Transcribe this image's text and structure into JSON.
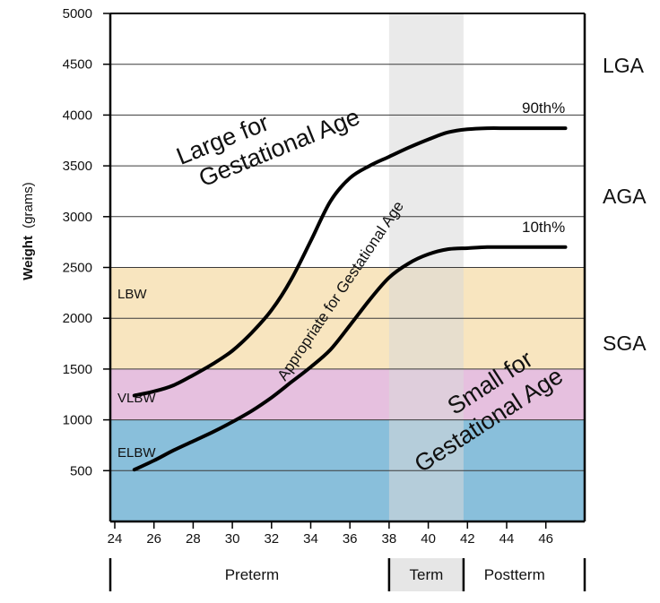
{
  "chart_data": {
    "type": "line",
    "xlabel": "",
    "ylabel_bold": "Weight",
    "ylabel_unit": "(grams)",
    "xlim": [
      24,
      47
    ],
    "ylim": [
      0,
      5000
    ],
    "x_ticks": [
      24,
      26,
      28,
      30,
      32,
      34,
      36,
      38,
      40,
      42,
      44,
      46
    ],
    "y_ticks": [
      500,
      1000,
      1500,
      2000,
      2500,
      3000,
      3500,
      4000,
      4500,
      5000
    ],
    "grid": "horizontal",
    "series": [
      {
        "name": "90th%",
        "x": [
          25,
          26,
          27,
          28,
          29,
          30,
          31,
          32,
          33,
          34,
          35,
          36,
          37,
          38,
          39,
          40,
          41,
          42,
          43,
          44,
          45,
          46,
          47
        ],
        "y": [
          1240,
          1280,
          1340,
          1440,
          1550,
          1680,
          1860,
          2080,
          2380,
          2760,
          3150,
          3380,
          3500,
          3590,
          3680,
          3760,
          3830,
          3860,
          3870,
          3870,
          3870,
          3870,
          3870
        ]
      },
      {
        "name": "10th%",
        "x": [
          25,
          26,
          27,
          28,
          29,
          30,
          31,
          32,
          33,
          34,
          35,
          36,
          37,
          38,
          39,
          40,
          41,
          42,
          43,
          44,
          45,
          46,
          47
        ],
        "y": [
          510,
          600,
          700,
          790,
          880,
          980,
          1090,
          1220,
          1370,
          1520,
          1690,
          1930,
          2180,
          2400,
          2540,
          2630,
          2680,
          2690,
          2700,
          2700,
          2700,
          2700,
          2700
        ]
      }
    ],
    "bands": [
      {
        "label": "ELBW",
        "from": 0,
        "to": 1000,
        "color": "#89bfdb"
      },
      {
        "label": "VLBW",
        "from": 1000,
        "to": 1500,
        "color": "#e6c0df"
      },
      {
        "label": "LBW",
        "from": 1500,
        "to": 2500,
        "color": "#f8e5bf"
      }
    ],
    "term_band": {
      "from": 38,
      "to": 41.8,
      "color": "#d9d9d9"
    },
    "right_labels": [
      "LGA",
      "AGA",
      "SGA"
    ],
    "region_labels": {
      "large": [
        "Large for",
        "Gestational Age"
      ],
      "appropriate": "Appropriate for Gestational Age",
      "small": [
        "Small for",
        "Gestational Age"
      ]
    },
    "periods": [
      {
        "label": "Preterm",
        "from": 24,
        "to": 38
      },
      {
        "label": "Term",
        "from": 38,
        "to": 41.8
      },
      {
        "label": "Postterm",
        "from": 41.8,
        "to": 47
      }
    ]
  }
}
